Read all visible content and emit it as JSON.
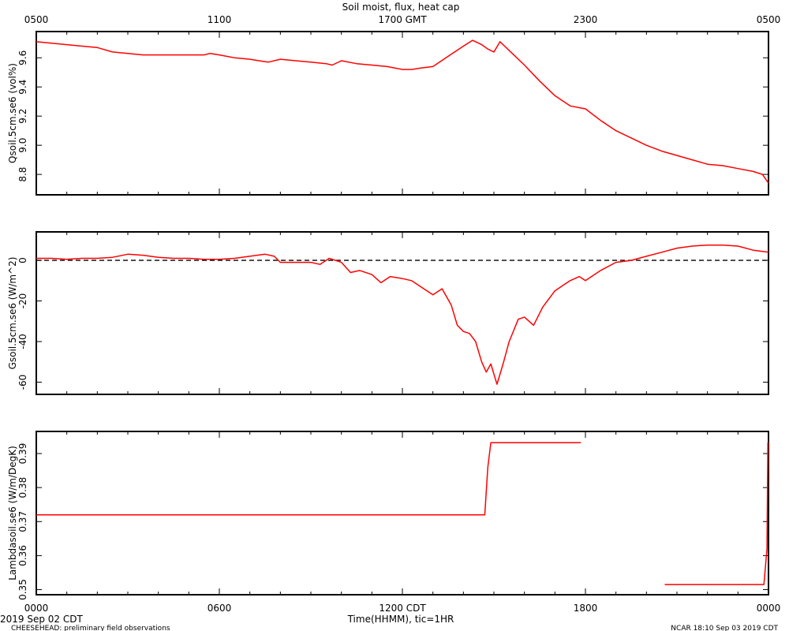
{
  "title": "Soil moist, flux, heat cap",
  "top_axis": {
    "ticks": [
      "0500",
      "1100",
      "1700 GMT",
      "2300",
      "0500"
    ]
  },
  "bottom_axis": {
    "ticks": [
      "0000",
      "0600",
      "1200 CDT",
      "1800",
      "0000"
    ],
    "label": "Time(HHMM), tic=1HR",
    "start_date": "2019 Sep 02 CDT"
  },
  "footer": {
    "left": "CHEESEHEAD: preliminary field observations",
    "right": "NCAR 18:10 Sep 03 2019 CDT"
  },
  "colors": {
    "series": "#ff0000",
    "axes": "#000000",
    "zero_line": "#000000"
  },
  "chart_data": [
    {
      "type": "line",
      "ylabel": "Qsoil.5cm.se6 (vol%)",
      "ylim": [
        8.66,
        9.78
      ],
      "yticks": [
        8.8,
        9.0,
        9.2,
        9.4,
        9.6
      ],
      "ytick_labels": [
        "8.8",
        "9.0",
        "9.2",
        "9.4",
        "9.6"
      ],
      "xlim": [
        0,
        24
      ],
      "series": [
        {
          "x": [
            0,
            0.5,
            1,
            1.5,
            2,
            2.5,
            3,
            3.5,
            4,
            4.5,
            5,
            5.5,
            5.7,
            6,
            6.5,
            7,
            7.3,
            7.6,
            8,
            8.5,
            9,
            9.5,
            9.7,
            10,
            10.5,
            11,
            11.5,
            12,
            12.3,
            12.6,
            13,
            13.5,
            14,
            14.3,
            14.6,
            14.8,
            15.0,
            15.2,
            15.6,
            16,
            16.5,
            17,
            17.5,
            18,
            18.5,
            19,
            19.5,
            20,
            20.5,
            21,
            21.5,
            22,
            22.5,
            23,
            23.5,
            23.8,
            24
          ],
          "y": [
            9.71,
            9.7,
            9.69,
            9.68,
            9.67,
            9.64,
            9.63,
            9.62,
            9.62,
            9.62,
            9.62,
            9.62,
            9.63,
            9.62,
            9.6,
            9.59,
            9.58,
            9.57,
            9.59,
            9.58,
            9.57,
            9.56,
            9.55,
            9.58,
            9.56,
            9.55,
            9.54,
            9.52,
            9.52,
            9.53,
            9.54,
            9.61,
            9.68,
            9.72,
            9.69,
            9.66,
            9.64,
            9.71,
            9.63,
            9.55,
            9.44,
            9.34,
            9.27,
            9.25,
            9.17,
            9.1,
            9.05,
            9.0,
            8.96,
            8.93,
            8.9,
            8.87,
            8.86,
            8.84,
            8.82,
            8.8,
            8.74
          ]
        }
      ]
    },
    {
      "type": "line",
      "ylabel": "Gsoil.5cm.se6 (W/m^2)",
      "ylim": [
        -66,
        14
      ],
      "yticks": [
        -60,
        -40,
        -20,
        0
      ],
      "ytick_labels": [
        "-60",
        "-40",
        "-20",
        "0"
      ],
      "zero_line": true,
      "xlim": [
        0,
        24
      ],
      "series": [
        {
          "x": [
            0,
            0.5,
            1,
            1.5,
            2,
            2.5,
            3,
            3.5,
            4,
            4.5,
            5,
            5.5,
            6,
            6.5,
            7,
            7.5,
            7.8,
            8,
            8.5,
            9,
            9.3,
            9.6,
            10,
            10.3,
            10.6,
            11,
            11.3,
            11.6,
            12,
            12.3,
            12.6,
            13,
            13.3,
            13.6,
            13.8,
            14.0,
            14.2,
            14.4,
            14.6,
            14.75,
            14.9,
            15.1,
            15.3,
            15.5,
            15.8,
            16.0,
            16.3,
            16.6,
            17,
            17.3,
            17.5,
            17.8,
            18,
            18.5,
            19,
            19.5,
            20,
            20.5,
            21,
            21.5,
            22,
            22.5,
            23,
            23.5,
            24
          ],
          "y": [
            1,
            1,
            0.5,
            1,
            1,
            1.5,
            3,
            2.5,
            1.5,
            1,
            1,
            0.5,
            0.5,
            1,
            2,
            3,
            2,
            -1,
            -1,
            -1,
            -2,
            1,
            -1,
            -6,
            -5,
            -7,
            -11,
            -8,
            -9,
            -10,
            -13,
            -17,
            -14,
            -22,
            -32,
            -35,
            -36,
            -40,
            -50,
            -55,
            -51,
            -61,
            -51,
            -40,
            -29,
            -28,
            -32,
            -23,
            -15,
            -12,
            -10,
            -8,
            -10,
            -5,
            -1,
            0,
            2,
            4,
            6,
            7,
            7.5,
            7.5,
            7,
            5,
            4
          ]
        }
      ]
    },
    {
      "type": "line",
      "ylabel": "Lambdasoil.se6 (W/m/DegK)",
      "ylim": [
        0.3485,
        0.3965
      ],
      "yticks": [
        0.35,
        0.36,
        0.37,
        0.38,
        0.39
      ],
      "ytick_labels": [
        "0.35",
        "0.36",
        "0.37",
        "0.38",
        "0.39"
      ],
      "xlim": [
        0,
        24
      ],
      "series": [
        {
          "x": [
            0,
            14.7,
            14.8,
            14.9,
            17.85
          ],
          "y": [
            0.372,
            0.372,
            0.386,
            0.3932,
            0.3932
          ]
        },
        {
          "x": [
            20.6,
            23.85,
            23.95,
            23.98,
            24
          ],
          "y": [
            0.3515,
            0.3515,
            0.362,
            0.3932,
            0.3932
          ]
        }
      ]
    }
  ]
}
